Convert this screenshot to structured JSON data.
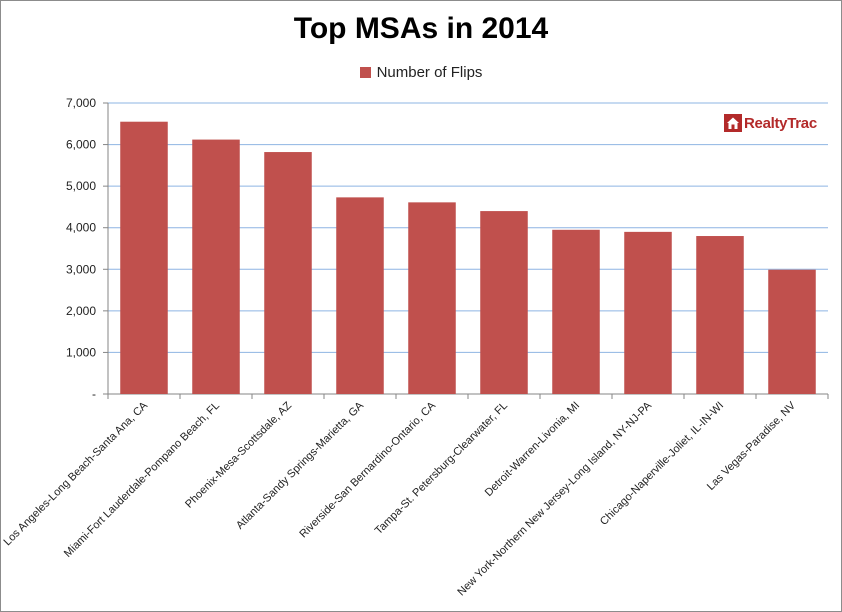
{
  "chart_data": {
    "type": "bar",
    "title": "Top MSAs in 2014",
    "xlabel": "",
    "ylabel": "",
    "categories": [
      "Los Angeles-Long Beach-Santa Ana, CA",
      "Miami-Fort Lauderdale-Pompano Beach, FL",
      "Phoenix-Mesa-Scottsdale, AZ",
      "Atlanta-Sandy Springs-Marietta, GA",
      "Riverside-San Bernardino-Ontario, CA",
      "Tampa-St. Petersburg-Clearwater, FL",
      "Detroit-Warren-Livonia, MI",
      "New York-Northern New Jersey-Long Island, NY-NJ-PA",
      "Chicago-Naperville-Joliet, IL-IN-WI",
      "Las Vegas-Paradise, NV"
    ],
    "series": [
      {
        "name": "Number of Flips",
        "values": [
          6550,
          6120,
          5820,
          4730,
          4610,
          4400,
          3950,
          3900,
          3800,
          2990
        ]
      }
    ],
    "ylim": [
      0,
      7000
    ],
    "yticks": [
      0,
      1000,
      2000,
      3000,
      4000,
      5000,
      6000,
      7000
    ],
    "ytick_labels": [
      "-",
      "1,000",
      "2,000",
      "3,000",
      "4,000",
      "5,000",
      "6,000",
      "7,000"
    ],
    "grid": true,
    "legend_position": "top-center",
    "bar_color": "#c0504d",
    "grid_color": "#8eb4e3"
  },
  "logo": {
    "text": "RealtyTrac",
    "color": "#b32a2a"
  }
}
